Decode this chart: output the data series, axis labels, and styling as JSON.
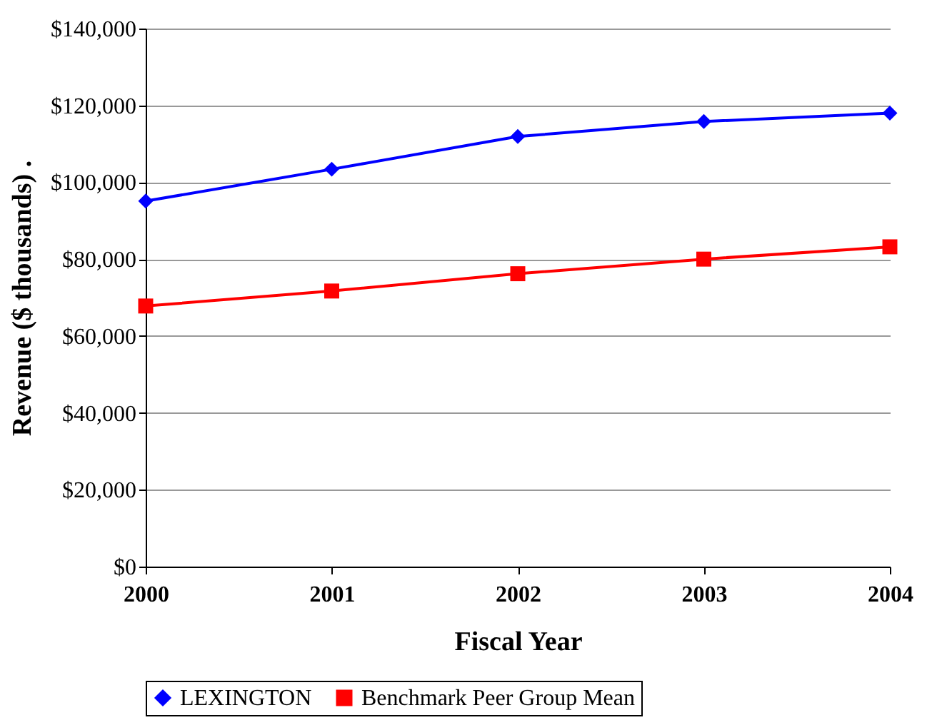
{
  "chart_data": {
    "type": "line",
    "xlabel": "Fiscal Year",
    "ylabel": "Revenue ($ thousands)  .",
    "categories": [
      "2000",
      "2001",
      "2002",
      "2003",
      "2004"
    ],
    "series": [
      {
        "name": "LEXINGTON",
        "color": "#0000ff",
        "marker": "diamond",
        "values": [
          95100,
          103400,
          111900,
          115800,
          118000
        ]
      },
      {
        "name": "Benchmark Peer Group Mean",
        "color": "#ff0000",
        "marker": "square",
        "values": [
          67800,
          71700,
          76200,
          80000,
          83200
        ]
      }
    ],
    "ylim": [
      0,
      140000
    ],
    "yticks": [
      {
        "value": 0,
        "label": "$0"
      },
      {
        "value": 20000,
        "label": "$20,000"
      },
      {
        "value": 40000,
        "label": "$40,000"
      },
      {
        "value": 60000,
        "label": "$60,000"
      },
      {
        "value": 80000,
        "label": "$80,000"
      },
      {
        "value": 100000,
        "label": "$100,000"
      },
      {
        "value": 120000,
        "label": "$120,000"
      },
      {
        "value": 140000,
        "label": "$140,000"
      }
    ],
    "grid": "y",
    "legend": "bottom",
    "line_style": "solid"
  }
}
